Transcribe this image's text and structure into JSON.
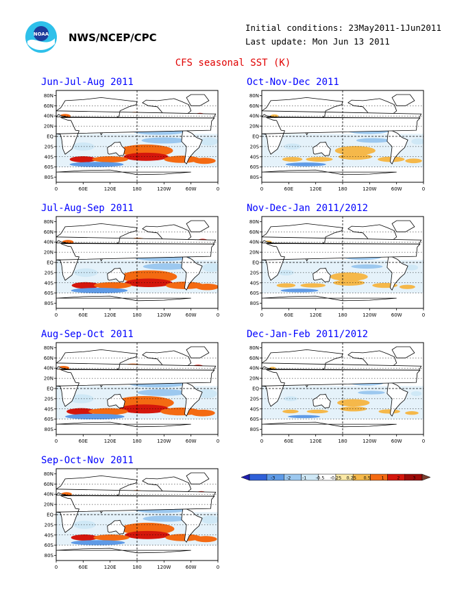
{
  "header": {
    "organization": "NWS/NCEP/CPC",
    "initial_conditions": "Initial conditions: 23May2011-1Jun2011",
    "last_update": "Last update: Mon Jun 13 2011",
    "logo_text": "NOAA"
  },
  "title": "CFS seasonal SST (K)",
  "axes": {
    "lat_labels": [
      "80N",
      "60N",
      "40N",
      "20N",
      "EQ",
      "20S",
      "40S",
      "60S",
      "80S"
    ],
    "lon_labels": [
      "0",
      "60E",
      "120E",
      "180",
      "120W",
      "60W",
      "0"
    ]
  },
  "panels": [
    {
      "title": "Jun-Jul-Aug 2011"
    },
    {
      "title": "Jul-Aug-Sep 2011"
    },
    {
      "title": "Aug-Sep-Oct 2011"
    },
    {
      "title": "Sep-Oct-Nov 2011"
    },
    {
      "title": "Oct-Nov-Dec 2011"
    },
    {
      "title": "Nov-Dec-Jan 2011/2012"
    },
    {
      "title": "Dec-Jan-Feb 2011/2012"
    }
  ],
  "legend": {
    "labels": [
      "-3",
      "-2",
      "-1",
      "-0.5",
      "-0.25",
      "0.25",
      "0.5",
      "1",
      "2",
      "3"
    ],
    "colors": [
      "#1f1fb0",
      "#2f60d8",
      "#5e9ae6",
      "#9cc8ef",
      "#cfe8f6",
      "#ffffff",
      "#fbe9a6",
      "#f5b84a",
      "#f46a12",
      "#d4160c",
      "#9b0a08",
      "#7a4030"
    ]
  }
}
